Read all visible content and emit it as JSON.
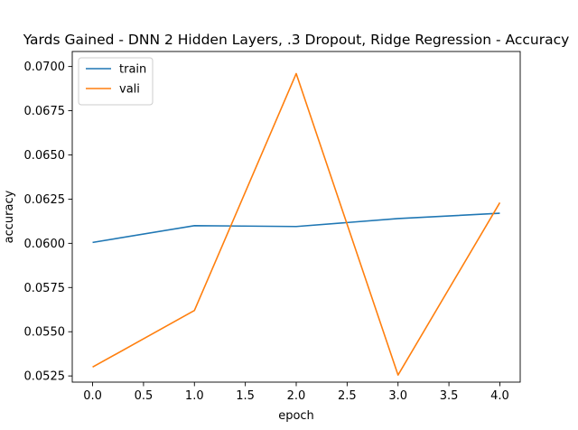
{
  "chart_data": {
    "type": "line",
    "title": "Yards Gained - DNN 2 Hidden Layers, .3 Dropout, Ridge Regression - Accuracy",
    "xlabel": "epoch",
    "ylabel": "accuracy",
    "x": [
      0,
      1,
      2,
      3,
      4
    ],
    "xlim": [
      -0.2,
      4.2
    ],
    "ylim": [
      0.05215,
      0.07085
    ],
    "xticks": [
      0.0,
      0.5,
      1.0,
      1.5,
      2.0,
      2.5,
      3.0,
      3.5,
      4.0
    ],
    "xtick_labels": [
      "0.0",
      "0.5",
      "1.0",
      "1.5",
      "2.0",
      "2.5",
      "3.0",
      "3.5",
      "4.0"
    ],
    "yticks": [
      0.0525,
      0.055,
      0.0575,
      0.06,
      0.0625,
      0.065,
      0.0675,
      0.07
    ],
    "ytick_labels": [
      "0.0525",
      "0.0550",
      "0.0575",
      "0.0600",
      "0.0625",
      "0.0650",
      "0.0675",
      "0.0700"
    ],
    "grid": false,
    "legend_position": "top-left",
    "series": [
      {
        "name": "train",
        "color": "#1f77b4",
        "values": [
          0.06005,
          0.061,
          0.06095,
          0.0614,
          0.0617
        ]
      },
      {
        "name": "vali",
        "color": "#ff7f0e",
        "values": [
          0.053,
          0.0562,
          0.0696,
          0.05255,
          0.0623
        ]
      }
    ]
  }
}
